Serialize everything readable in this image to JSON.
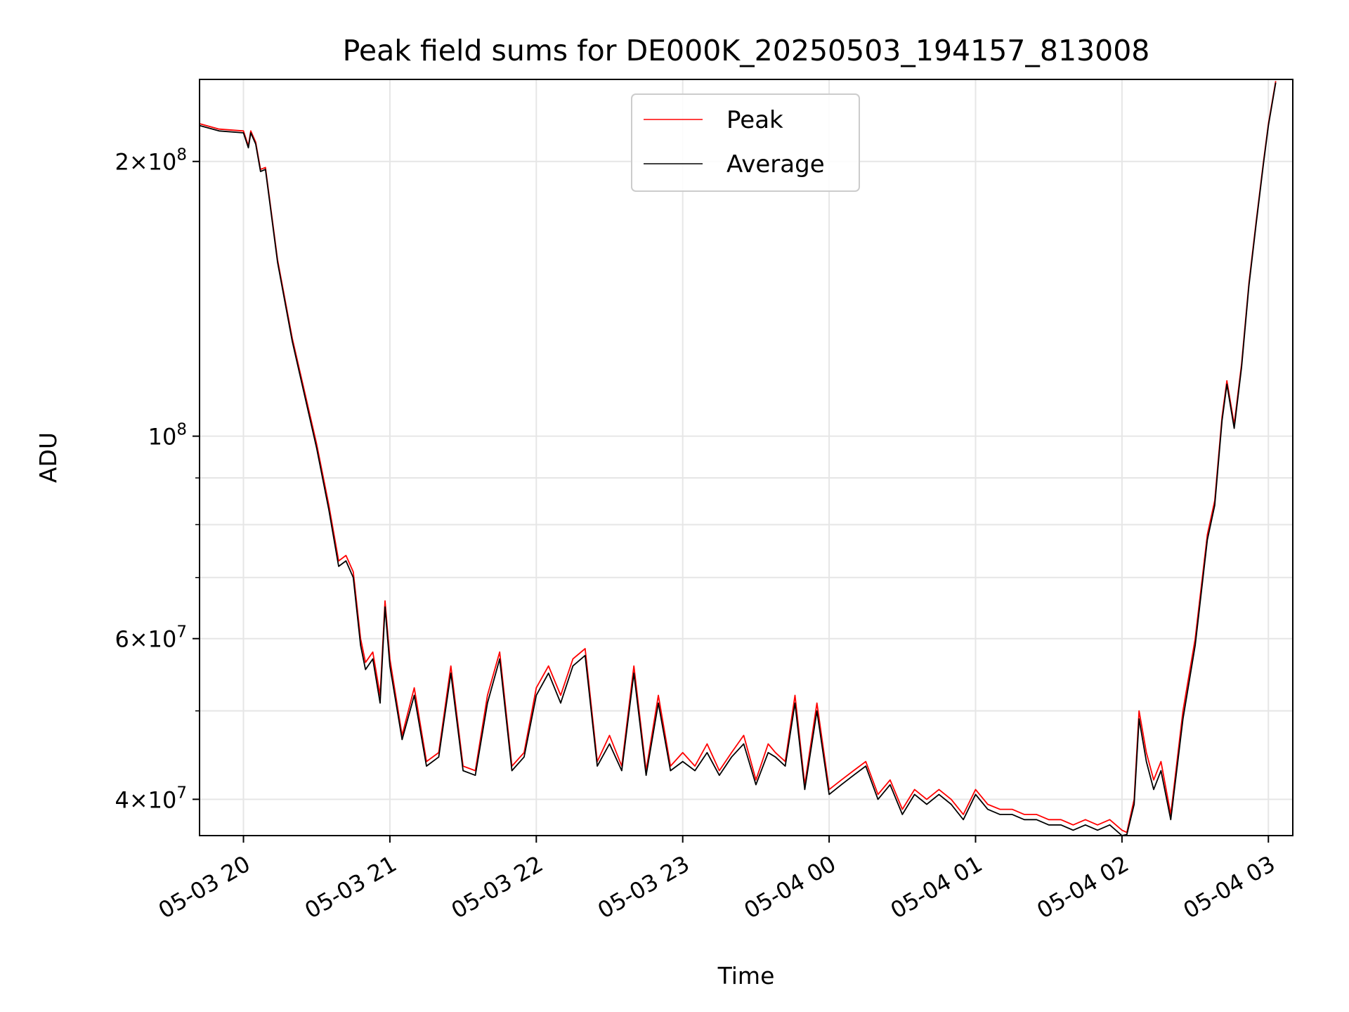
{
  "chart_data": {
    "type": "line",
    "title": "Peak field sums for DE000K_20250503_194157_813008",
    "xlabel": "Time",
    "ylabel": "ADU",
    "x_scale": "time",
    "y_scale": "log",
    "xlim": [
      "2025-05-03 19:42",
      "2025-05-04 03:10"
    ],
    "ylim": [
      36500000,
      246000000
    ],
    "grid": true,
    "legend_position": "top-center",
    "x_ticks": [
      {
        "time": "2025-05-03 20:00",
        "label": "05-03 20"
      },
      {
        "time": "2025-05-03 21:00",
        "label": "05-03 21"
      },
      {
        "time": "2025-05-03 22:00",
        "label": "05-03 22"
      },
      {
        "time": "2025-05-03 23:00",
        "label": "05-03 23"
      },
      {
        "time": "2025-05-04 00:00",
        "label": "05-04 00"
      },
      {
        "time": "2025-05-04 01:00",
        "label": "05-04 01"
      },
      {
        "time": "2025-05-04 02:00",
        "label": "05-04 02"
      },
      {
        "time": "2025-05-04 03:00",
        "label": "05-04 03"
      }
    ],
    "y_ticks": [
      {
        "value": 40000000,
        "mantissa": "4",
        "exponent": "7"
      },
      {
        "value": 60000000,
        "mantissa": "6",
        "exponent": "7"
      },
      {
        "value": 100000000,
        "mantissa": "",
        "exponent": "8"
      },
      {
        "value": 200000000,
        "mantissa": "2",
        "exponent": "8"
      }
    ],
    "y_minor_ticks": [
      50000000,
      70000000,
      80000000,
      90000000
    ],
    "series": [
      {
        "name": "Peak",
        "color": "#ff0000",
        "x": [
          "2025-05-03 19:42",
          "2025-05-03 19:50",
          "2025-05-03 20:00",
          "2025-05-03 20:02",
          "2025-05-03 20:03",
          "2025-05-03 20:05",
          "2025-05-03 20:07",
          "2025-05-03 20:09",
          "2025-05-03 20:14",
          "2025-05-03 20:20",
          "2025-05-03 20:30",
          "2025-05-03 20:35",
          "2025-05-03 20:39",
          "2025-05-03 20:42",
          "2025-05-03 20:45",
          "2025-05-03 20:48",
          "2025-05-03 20:50",
          "2025-05-03 20:53",
          "2025-05-03 20:56",
          "2025-05-03 20:58",
          "2025-05-03 21:00",
          "2025-05-03 21:05",
          "2025-05-03 21:10",
          "2025-05-03 21:15",
          "2025-05-03 21:20",
          "2025-05-03 21:25",
          "2025-05-03 21:30",
          "2025-05-03 21:35",
          "2025-05-03 21:40",
          "2025-05-03 21:45",
          "2025-05-03 21:50",
          "2025-05-03 21:55",
          "2025-05-03 22:00",
          "2025-05-03 22:05",
          "2025-05-03 22:10",
          "2025-05-03 22:15",
          "2025-05-03 22:20",
          "2025-05-03 22:25",
          "2025-05-03 22:30",
          "2025-05-03 22:35",
          "2025-05-03 22:40",
          "2025-05-03 22:45",
          "2025-05-03 22:50",
          "2025-05-03 22:55",
          "2025-05-03 23:00",
          "2025-05-03 23:05",
          "2025-05-03 23:10",
          "2025-05-03 23:15",
          "2025-05-03 23:20",
          "2025-05-03 23:25",
          "2025-05-03 23:30",
          "2025-05-03 23:35",
          "2025-05-03 23:38",
          "2025-05-03 23:42",
          "2025-05-03 23:46",
          "2025-05-03 23:50",
          "2025-05-03 23:55",
          "2025-05-04 00:00",
          "2025-05-04 00:05",
          "2025-05-04 00:10",
          "2025-05-04 00:15",
          "2025-05-04 00:20",
          "2025-05-04 00:25",
          "2025-05-04 00:30",
          "2025-05-04 00:35",
          "2025-05-04 00:40",
          "2025-05-04 00:45",
          "2025-05-04 00:50",
          "2025-05-04 00:55",
          "2025-05-04 01:00",
          "2025-05-04 01:05",
          "2025-05-04 01:10",
          "2025-05-04 01:15",
          "2025-05-04 01:20",
          "2025-05-04 01:25",
          "2025-05-04 01:30",
          "2025-05-04 01:35",
          "2025-05-04 01:40",
          "2025-05-04 01:45",
          "2025-05-04 01:50",
          "2025-05-04 01:55",
          "2025-05-04 02:00",
          "2025-05-04 02:02",
          "2025-05-04 02:05",
          "2025-05-04 02:07",
          "2025-05-04 02:10",
          "2025-05-04 02:13",
          "2025-05-04 02:16",
          "2025-05-04 02:20",
          "2025-05-04 02:25",
          "2025-05-04 02:30",
          "2025-05-04 02:35",
          "2025-05-04 02:38",
          "2025-05-04 02:41",
          "2025-05-04 02:43",
          "2025-05-04 02:46",
          "2025-05-04 02:49",
          "2025-05-04 02:52",
          "2025-05-04 02:55",
          "2025-05-04 02:58",
          "2025-05-04 03:00",
          "2025-05-04 03:03"
        ],
        "y": [
          220000000,
          217000000,
          216000000,
          208000000,
          216000000,
          210000000,
          196000000,
          197000000,
          156000000,
          128000000,
          98000000,
          84000000,
          73000000,
          74000000,
          71000000,
          60000000,
          56500000,
          58000000,
          52000000,
          66000000,
          57000000,
          47000000,
          53000000,
          44000000,
          45000000,
          56000000,
          43500000,
          43000000,
          52000000,
          58000000,
          43500000,
          45000000,
          53000000,
          56000000,
          52000000,
          57000000,
          58500000,
          44000000,
          47000000,
          43500000,
          56000000,
          43000000,
          52000000,
          43500000,
          45000000,
          43500000,
          46000000,
          43000000,
          45000000,
          47000000,
          42000000,
          46000000,
          45000000,
          44000000,
          52000000,
          41500000,
          51000000,
          41000000,
          42000000,
          43000000,
          44000000,
          40500000,
          42000000,
          39000000,
          41000000,
          40000000,
          41000000,
          40000000,
          38500000,
          41000000,
          39500000,
          39000000,
          39000000,
          38500000,
          38500000,
          38000000,
          38000000,
          37500000,
          38000000,
          37500000,
          38000000,
          37000000,
          36800000,
          40000000,
          50000000,
          45000000,
          42000000,
          44000000,
          38500000,
          50000000,
          60000000,
          78000000,
          85000000,
          105000000,
          115000000,
          103000000,
          120000000,
          147000000,
          172000000,
          200000000,
          220000000,
          245000000
        ]
      },
      {
        "name": "Average",
        "color": "#000000",
        "x": [
          "2025-05-03 19:42",
          "2025-05-03 19:50",
          "2025-05-03 20:00",
          "2025-05-03 20:02",
          "2025-05-03 20:03",
          "2025-05-03 20:05",
          "2025-05-03 20:07",
          "2025-05-03 20:09",
          "2025-05-03 20:14",
          "2025-05-03 20:20",
          "2025-05-03 20:30",
          "2025-05-03 20:35",
          "2025-05-03 20:39",
          "2025-05-03 20:42",
          "2025-05-03 20:45",
          "2025-05-03 20:48",
          "2025-05-03 20:50",
          "2025-05-03 20:53",
          "2025-05-03 20:56",
          "2025-05-03 20:58",
          "2025-05-03 21:00",
          "2025-05-03 21:05",
          "2025-05-03 21:10",
          "2025-05-03 21:15",
          "2025-05-03 21:20",
          "2025-05-03 21:25",
          "2025-05-03 21:30",
          "2025-05-03 21:35",
          "2025-05-03 21:40",
          "2025-05-03 21:45",
          "2025-05-03 21:50",
          "2025-05-03 21:55",
          "2025-05-03 22:00",
          "2025-05-03 22:05",
          "2025-05-03 22:10",
          "2025-05-03 22:15",
          "2025-05-03 22:20",
          "2025-05-03 22:25",
          "2025-05-03 22:30",
          "2025-05-03 22:35",
          "2025-05-03 22:40",
          "2025-05-03 22:45",
          "2025-05-03 22:50",
          "2025-05-03 22:55",
          "2025-05-03 23:00",
          "2025-05-03 23:05",
          "2025-05-03 23:10",
          "2025-05-03 23:15",
          "2025-05-03 23:20",
          "2025-05-03 23:25",
          "2025-05-03 23:30",
          "2025-05-03 23:35",
          "2025-05-03 23:38",
          "2025-05-03 23:42",
          "2025-05-03 23:46",
          "2025-05-03 23:50",
          "2025-05-03 23:55",
          "2025-05-04 00:00",
          "2025-05-04 00:05",
          "2025-05-04 00:10",
          "2025-05-04 00:15",
          "2025-05-04 00:20",
          "2025-05-04 00:25",
          "2025-05-04 00:30",
          "2025-05-04 00:35",
          "2025-05-04 00:40",
          "2025-05-04 00:45",
          "2025-05-04 00:50",
          "2025-05-04 00:55",
          "2025-05-04 01:00",
          "2025-05-04 01:05",
          "2025-05-04 01:10",
          "2025-05-04 01:15",
          "2025-05-04 01:20",
          "2025-05-04 01:25",
          "2025-05-04 01:30",
          "2025-05-04 01:35",
          "2025-05-04 01:40",
          "2025-05-04 01:45",
          "2025-05-04 01:50",
          "2025-05-04 01:55",
          "2025-05-04 02:00",
          "2025-05-04 02:02",
          "2025-05-04 02:05",
          "2025-05-04 02:07",
          "2025-05-04 02:10",
          "2025-05-04 02:13",
          "2025-05-04 02:16",
          "2025-05-04 02:20",
          "2025-05-04 02:25",
          "2025-05-04 02:30",
          "2025-05-04 02:35",
          "2025-05-04 02:38",
          "2025-05-04 02:41",
          "2025-05-04 02:43",
          "2025-05-04 02:46",
          "2025-05-04 02:49",
          "2025-05-04 02:52",
          "2025-05-04 02:55",
          "2025-05-04 02:58",
          "2025-05-04 03:00",
          "2025-05-04 03:03"
        ],
        "y": [
          219000000,
          216000000,
          215000000,
          207000000,
          215000000,
          209000000,
          195000000,
          196000000,
          155000000,
          127000000,
          97000000,
          83000000,
          72000000,
          73000000,
          70000000,
          59000000,
          55500000,
          57000000,
          51000000,
          65000000,
          56000000,
          46500000,
          52000000,
          43500000,
          44500000,
          55000000,
          43000000,
          42500000,
          51000000,
          57000000,
          43000000,
          44500000,
          52000000,
          55000000,
          51000000,
          56000000,
          57500000,
          43500000,
          46000000,
          43000000,
          55000000,
          42500000,
          51000000,
          43000000,
          44000000,
          43000000,
          45000000,
          42500000,
          44500000,
          46000000,
          41500000,
          45000000,
          44500000,
          43500000,
          51000000,
          41000000,
          50000000,
          40500000,
          41500000,
          42500000,
          43500000,
          40000000,
          41500000,
          38500000,
          40500000,
          39500000,
          40500000,
          39500000,
          38000000,
          40500000,
          39000000,
          38500000,
          38500000,
          38000000,
          38000000,
          37500000,
          37500000,
          37000000,
          37500000,
          37000000,
          37500000,
          36500000,
          36600000,
          39500000,
          49000000,
          44000000,
          41000000,
          43000000,
          38000000,
          49000000,
          59000000,
          77000000,
          84000000,
          104000000,
          114000000,
          102000000,
          119000000,
          146000000,
          171000000,
          199000000,
          219000000,
          244000000
        ]
      }
    ]
  }
}
